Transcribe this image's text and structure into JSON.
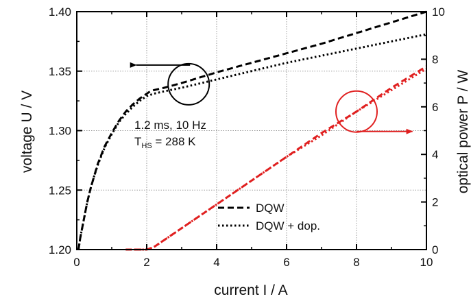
{
  "chart_data": {
    "type": "line",
    "xlabel": "current I / A",
    "ylabel": "voltage U / V",
    "y2label": "optical power P / W",
    "xlim": [
      0,
      10
    ],
    "ylim": [
      1.2,
      1.4
    ],
    "y2lim": [
      0,
      10
    ],
    "grid": true,
    "x_ticks": [
      "0",
      "2",
      "4",
      "6",
      "8",
      "10"
    ],
    "y_ticks": [
      "1.20",
      "1.25",
      "1.30",
      "1.35",
      "1.40"
    ],
    "y2_ticks": [
      "0",
      "2",
      "4",
      "6",
      "8",
      "10"
    ],
    "annotation": {
      "line1": "1.2 ms, 10 Hz",
      "line2_main": "T",
      "line2_sub": "HS",
      "line2_rest": " = 288 K"
    },
    "legend": {
      "position": "bottom-center",
      "entries": [
        "DQW",
        "DQW + dop."
      ]
    },
    "series": [
      {
        "name": "DQW",
        "axis": "left",
        "color": "#000000",
        "dash": "dashed",
        "x": [
          0.05,
          0.1,
          0.2,
          0.3,
          0.4,
          0.5,
          0.6,
          0.8,
          1.0,
          1.2,
          1.4,
          1.6,
          1.8,
          2.0,
          2.1,
          2.2,
          2.5,
          3.0,
          4.0,
          5.0,
          6.0,
          7.0,
          8.0,
          9.0,
          10.0
        ],
        "y": [
          1.2,
          1.21,
          1.225,
          1.24,
          1.252,
          1.262,
          1.272,
          1.287,
          1.298,
          1.308,
          1.316,
          1.322,
          1.327,
          1.331,
          1.333,
          1.334,
          1.336,
          1.34,
          1.349,
          1.357,
          1.365,
          1.373,
          1.382,
          1.391,
          1.4
        ]
      },
      {
        "name": "DQW + dop.",
        "axis": "left",
        "color": "#000000",
        "dash": "dotted",
        "x": [
          0.05,
          0.1,
          0.2,
          0.3,
          0.4,
          0.5,
          0.6,
          0.8,
          1.0,
          1.2,
          1.4,
          1.6,
          1.8,
          2.0,
          2.2,
          2.5,
          3.0,
          4.0,
          5.0,
          6.0,
          7.0,
          8.0,
          9.0,
          10.0
        ],
        "y": [
          1.2,
          1.21,
          1.225,
          1.24,
          1.252,
          1.262,
          1.271,
          1.286,
          1.297,
          1.307,
          1.314,
          1.32,
          1.325,
          1.329,
          1.331,
          1.333,
          1.336,
          1.343,
          1.35,
          1.357,
          1.363,
          1.369,
          1.375,
          1.381
        ]
      },
      {
        "name": "DQW",
        "axis": "right",
        "color": "#e02020",
        "dash": "dashed",
        "x": [
          1.4,
          2.0,
          2.2,
          2.5,
          3.0,
          4.0,
          5.0,
          6.0,
          7.0,
          8.0,
          9.0,
          10.0
        ],
        "y": [
          0.0,
          0.0,
          0.1,
          0.4,
          0.9,
          1.9,
          2.9,
          3.9,
          4.9,
          5.8,
          6.8,
          7.7
        ]
      },
      {
        "name": "DQW + dop.",
        "axis": "right",
        "color": "#e02020",
        "dash": "dotted",
        "x": [
          1.4,
          2.0,
          2.2,
          2.5,
          3.0,
          4.0,
          5.0,
          6.0,
          7.0,
          8.0,
          9.0,
          10.0
        ],
        "y": [
          0.0,
          0.0,
          0.1,
          0.4,
          0.9,
          1.9,
          2.9,
          3.9,
          4.8,
          5.8,
          6.7,
          7.6
        ]
      }
    ],
    "markers": [
      {
        "kind": "circle-arrow",
        "color": "#000000",
        "circle_x": 3.2,
        "circle_y": 1.339,
        "arrow_to_x": 1.7,
        "points": "left"
      },
      {
        "kind": "circle-arrow",
        "color": "#e02020",
        "circle_x": 8.0,
        "circle_y2": 5.8,
        "arrow_to_x": 9.6,
        "points": "right"
      }
    ]
  }
}
